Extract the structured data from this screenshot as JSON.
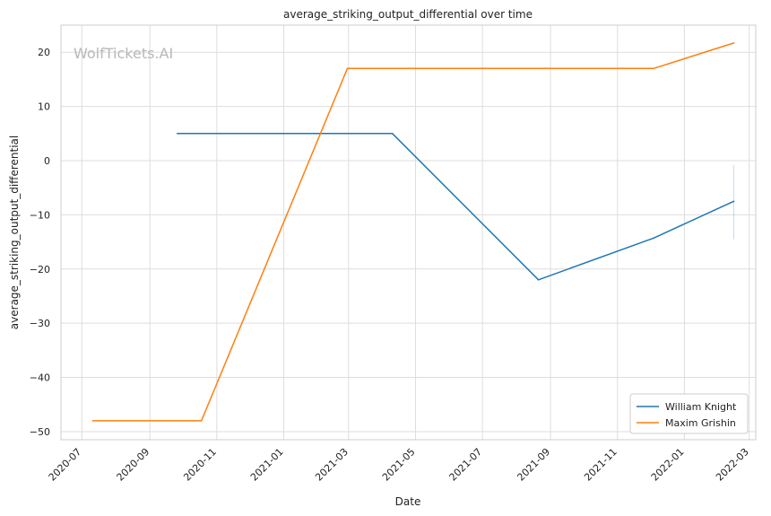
{
  "chart_data": {
    "type": "line",
    "title": "average_striking_output_differential over time",
    "xlabel": "Date",
    "ylabel": "average_striking_output_differential",
    "watermark": "WolfTickets.AI",
    "x_ticks": [
      "2020-07",
      "2020-09",
      "2020-11",
      "2021-01",
      "2021-03",
      "2021-05",
      "2021-07",
      "2021-09",
      "2021-11",
      "2022-01",
      "2022-03"
    ],
    "y_ticks": [
      20,
      10,
      0,
      -10,
      -20,
      -30,
      -40,
      -50
    ],
    "xlim": [
      "2020-06-12",
      "2022-03-07"
    ],
    "ylim": [
      -51.5,
      25
    ],
    "grid": true,
    "legend_position": "bottom-right",
    "series": [
      {
        "name": "William Knight",
        "color": "#1f77b4",
        "points": [
          {
            "date": "2020-09-26",
            "y": 5
          },
          {
            "date": "2021-04-10",
            "y": 5
          },
          {
            "date": "2021-08-21",
            "y": -22
          },
          {
            "date": "2021-12-04",
            "y": -14.3
          },
          {
            "date": "2022-02-15",
            "y": -7.5
          }
        ],
        "error_bar": {
          "date": "2022-02-15",
          "low": -14.5,
          "high": -0.8
        }
      },
      {
        "name": "Maxim Grishin",
        "color": "#ff7f0e",
        "points": [
          {
            "date": "2020-07-11",
            "y": -48
          },
          {
            "date": "2020-10-18",
            "y": -48
          },
          {
            "date": "2021-02-28",
            "y": 17
          },
          {
            "date": "2021-12-04",
            "y": 17
          },
          {
            "date": "2022-02-15",
            "y": 21.7
          }
        ]
      }
    ]
  }
}
